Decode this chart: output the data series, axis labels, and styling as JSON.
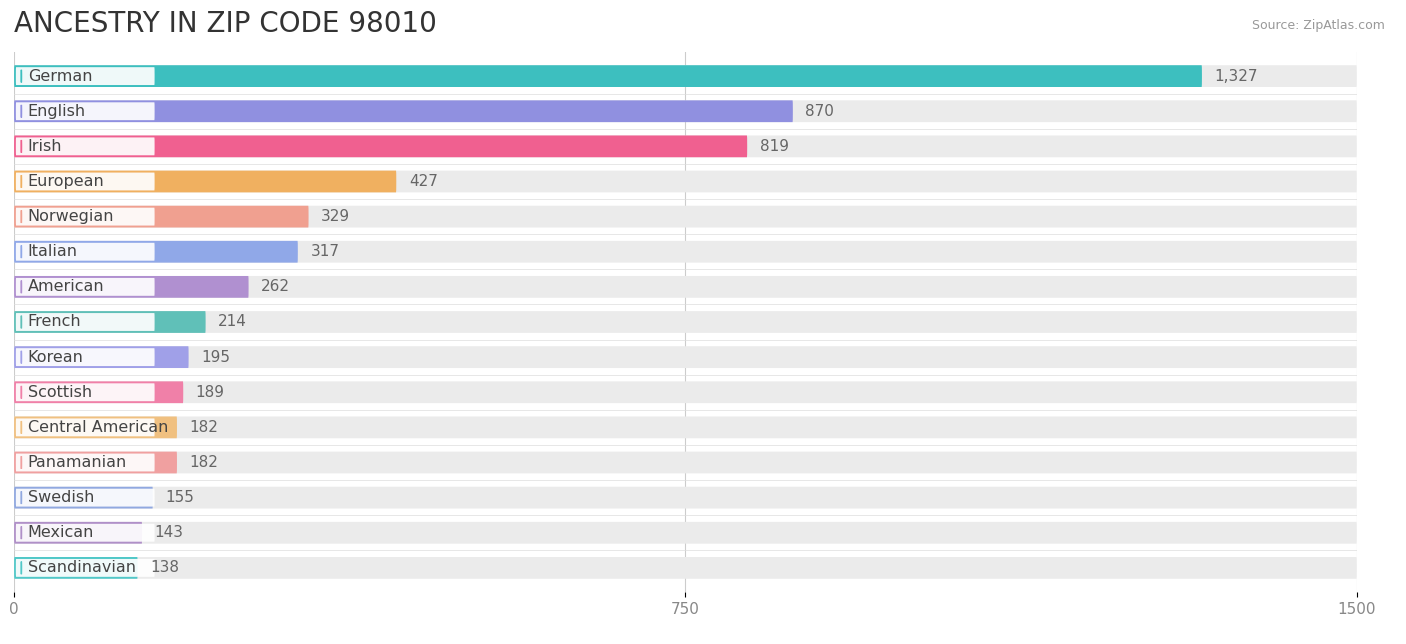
{
  "title": "ANCESTRY IN ZIP CODE 98010",
  "source_text": "Source: ZipAtlas.com",
  "categories": [
    "German",
    "English",
    "Irish",
    "European",
    "Norwegian",
    "Italian",
    "American",
    "French",
    "Korean",
    "Scottish",
    "Central American",
    "Panamanian",
    "Swedish",
    "Mexican",
    "Scandinavian"
  ],
  "values": [
    1327,
    870,
    819,
    427,
    329,
    317,
    262,
    214,
    195,
    189,
    182,
    182,
    155,
    143,
    138
  ],
  "value_labels": [
    "1,327",
    "870",
    "819",
    "427",
    "329",
    "317",
    "262",
    "214",
    "195",
    "189",
    "182",
    "182",
    "155",
    "143",
    "138"
  ],
  "bar_colors": [
    "#3dbfbf",
    "#9090e0",
    "#f06090",
    "#f0b060",
    "#f0a090",
    "#90a8e8",
    "#b090d0",
    "#60c0b8",
    "#a0a0e8",
    "#f080a8",
    "#f0c080",
    "#f0a0a0",
    "#90a8e0",
    "#b090c8",
    "#50c8c8"
  ],
  "background_color": "#ffffff",
  "bar_bg_color": "#ebebeb",
  "xlim_max": 1500,
  "xticks": [
    0,
    750,
    1500
  ],
  "title_fontsize": 20,
  "label_fontsize": 11.5,
  "value_fontsize": 11
}
